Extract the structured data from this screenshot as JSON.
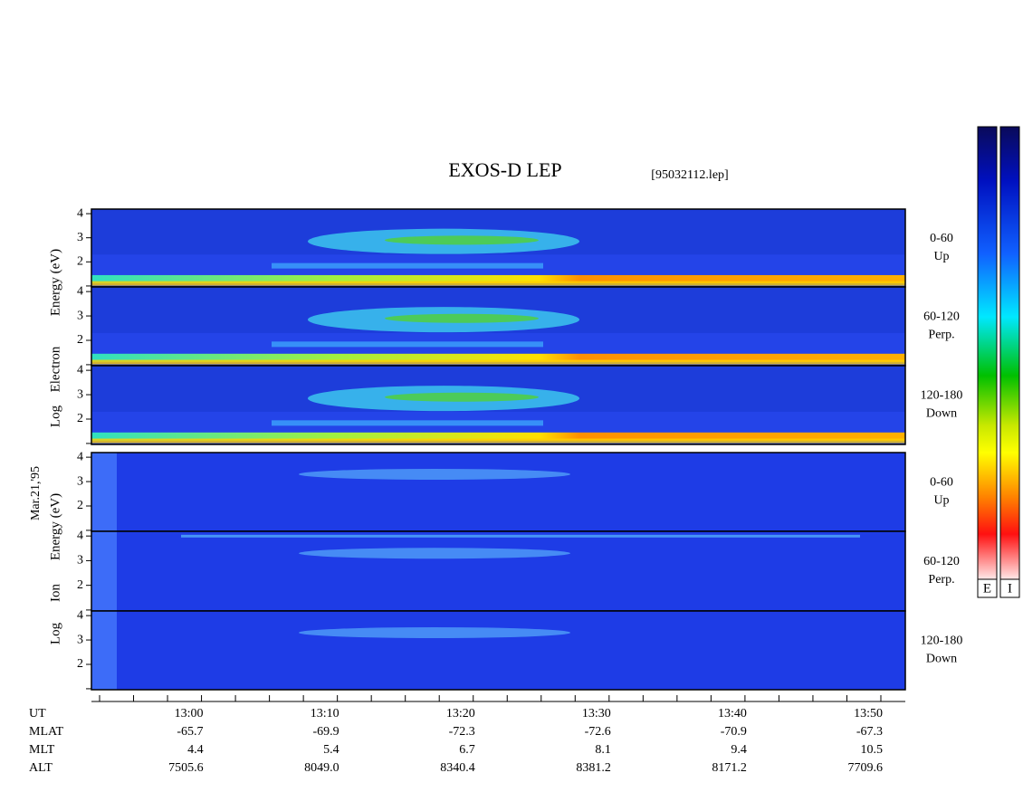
{
  "chart_data": {
    "type": "spectrogram",
    "title": "EXOS-D LEP",
    "file_label": "[95032112.lep]",
    "date_label": "Mar.21,'95",
    "electron_ylabel": [
      "Log",
      "Electron",
      "Energy (eV)"
    ],
    "ion_ylabel": [
      "Log",
      "Ion",
      "Energy (eV)"
    ],
    "ylim": [
      0.96,
      4.19
    ],
    "yticks": [
      2,
      3,
      4
    ],
    "minor_yticks": [
      1
    ],
    "panels": [
      {
        "species": "electron",
        "label": [
          "0-60",
          "Up"
        ]
      },
      {
        "species": "electron",
        "label": [
          "60-120",
          "Perp."
        ]
      },
      {
        "species": "electron",
        "label": [
          "120-180",
          "Down"
        ]
      },
      {
        "species": "ion",
        "label": [
          "0-60",
          "Up"
        ]
      },
      {
        "species": "ion",
        "label": [
          "60-120",
          "Perp."
        ]
      },
      {
        "species": "ion",
        "label": [
          "120-180",
          "Down"
        ]
      }
    ],
    "xlim": [
      -8.1,
      51.8
    ],
    "xticks": [
      -7.5,
      -5,
      -2.5,
      0,
      2.5,
      5,
      7.5,
      10,
      12.5,
      15,
      17.5,
      20,
      22.5,
      25,
      27.5,
      30,
      32.5,
      35,
      37.5,
      40,
      42.5,
      45,
      47.5,
      50
    ],
    "orbit": {
      "row_labels": [
        "UT",
        "MLAT",
        "MLT",
        "ALT"
      ],
      "label_minutes": [
        0,
        10,
        20,
        30,
        40,
        50
      ],
      "columns": [
        [
          "13:00",
          "-65.7",
          "4.4",
          "7505.6"
        ],
        [
          "13:10",
          "-69.9",
          "5.4",
          "8049.0"
        ],
        [
          "13:20",
          "-72.3",
          "6.7",
          "8340.4"
        ],
        [
          "13:30",
          "-72.6",
          "8.1",
          "8381.2"
        ],
        [
          "13:40",
          "-70.9",
          "9.4",
          "8171.2"
        ],
        [
          "13:50",
          "-67.3",
          "10.5",
          "7709.6"
        ]
      ]
    },
    "colorbar_labels": [
      "E",
      "I"
    ]
  }
}
